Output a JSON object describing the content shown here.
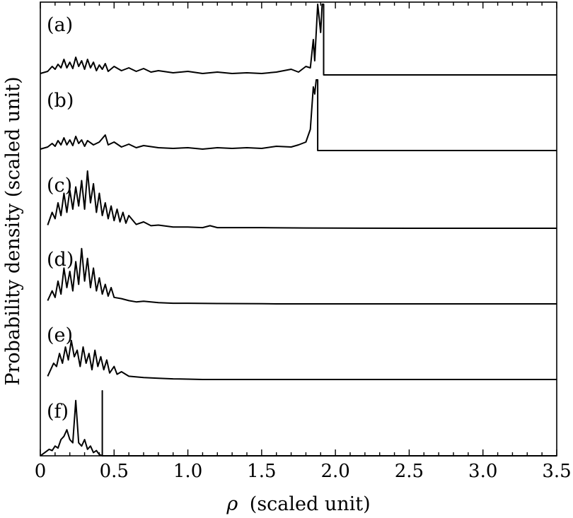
{
  "chart_data": {
    "type": "line",
    "xlabel_symbol": "ρ",
    "xlabel_unit": "(scaled unit)",
    "ylabel": "Probability density (scaled unit)",
    "xlim": [
      0,
      3.5
    ],
    "xticks": [
      "0",
      "0.5",
      "1.0",
      "1.5",
      "2.0",
      "2.5",
      "3.0",
      "3.5"
    ],
    "grid": false,
    "stacked_offset_panels": true,
    "panels": [
      {
        "label": "(a)",
        "cutoff": 1.92,
        "points": [
          [
            0,
            0.02
          ],
          [
            0.05,
            0.05
          ],
          [
            0.08,
            0.12
          ],
          [
            0.1,
            0.08
          ],
          [
            0.12,
            0.15
          ],
          [
            0.14,
            0.1
          ],
          [
            0.16,
            0.22
          ],
          [
            0.18,
            0.1
          ],
          [
            0.2,
            0.18
          ],
          [
            0.22,
            0.09
          ],
          [
            0.24,
            0.25
          ],
          [
            0.26,
            0.12
          ],
          [
            0.28,
            0.2
          ],
          [
            0.3,
            0.08
          ],
          [
            0.32,
            0.22
          ],
          [
            0.34,
            0.1
          ],
          [
            0.36,
            0.18
          ],
          [
            0.38,
            0.06
          ],
          [
            0.4,
            0.14
          ],
          [
            0.42,
            0.08
          ],
          [
            0.44,
            0.16
          ],
          [
            0.46,
            0.05
          ],
          [
            0.5,
            0.12
          ],
          [
            0.55,
            0.06
          ],
          [
            0.6,
            0.1
          ],
          [
            0.65,
            0.05
          ],
          [
            0.7,
            0.09
          ],
          [
            0.75,
            0.04
          ],
          [
            0.8,
            0.06
          ],
          [
            0.9,
            0.03
          ],
          [
            1.0,
            0.05
          ],
          [
            1.1,
            0.02
          ],
          [
            1.2,
            0.04
          ],
          [
            1.3,
            0.02
          ],
          [
            1.4,
            0.03
          ],
          [
            1.5,
            0.02
          ],
          [
            1.6,
            0.04
          ],
          [
            1.7,
            0.08
          ],
          [
            1.75,
            0.04
          ],
          [
            1.8,
            0.12
          ],
          [
            1.83,
            0.1
          ],
          [
            1.85,
            0.5
          ],
          [
            1.86,
            0.2
          ],
          [
            1.88,
            1.0
          ],
          [
            1.9,
            0.6
          ],
          [
            1.91,
            1.0
          ]
        ]
      },
      {
        "label": "(b)",
        "cutoff": 1.88,
        "points": [
          [
            0,
            0.02
          ],
          [
            0.05,
            0.05
          ],
          [
            0.08,
            0.1
          ],
          [
            0.1,
            0.06
          ],
          [
            0.12,
            0.14
          ],
          [
            0.14,
            0.08
          ],
          [
            0.16,
            0.18
          ],
          [
            0.18,
            0.08
          ],
          [
            0.2,
            0.15
          ],
          [
            0.22,
            0.07
          ],
          [
            0.24,
            0.2
          ],
          [
            0.26,
            0.1
          ],
          [
            0.28,
            0.15
          ],
          [
            0.3,
            0.06
          ],
          [
            0.32,
            0.14
          ],
          [
            0.36,
            0.08
          ],
          [
            0.4,
            0.12
          ],
          [
            0.44,
            0.22
          ],
          [
            0.46,
            0.08
          ],
          [
            0.5,
            0.12
          ],
          [
            0.55,
            0.05
          ],
          [
            0.6,
            0.09
          ],
          [
            0.65,
            0.04
          ],
          [
            0.7,
            0.07
          ],
          [
            0.8,
            0.04
          ],
          [
            0.9,
            0.03
          ],
          [
            1.0,
            0.04
          ],
          [
            1.1,
            0.02
          ],
          [
            1.2,
            0.04
          ],
          [
            1.3,
            0.03
          ],
          [
            1.4,
            0.04
          ],
          [
            1.5,
            0.03
          ],
          [
            1.6,
            0.06
          ],
          [
            1.7,
            0.05
          ],
          [
            1.75,
            0.08
          ],
          [
            1.8,
            0.12
          ],
          [
            1.83,
            0.3
          ],
          [
            1.85,
            0.9
          ],
          [
            1.86,
            0.8
          ],
          [
            1.87,
            1.0
          ]
        ]
      },
      {
        "label": "(c)",
        "cutoff": 3.5,
        "points": [
          [
            0.05,
            0.05
          ],
          [
            0.08,
            0.25
          ],
          [
            0.1,
            0.15
          ],
          [
            0.12,
            0.4
          ],
          [
            0.14,
            0.2
          ],
          [
            0.16,
            0.55
          ],
          [
            0.18,
            0.25
          ],
          [
            0.2,
            0.6
          ],
          [
            0.22,
            0.3
          ],
          [
            0.24,
            0.65
          ],
          [
            0.26,
            0.35
          ],
          [
            0.28,
            0.75
          ],
          [
            0.3,
            0.3
          ],
          [
            0.32,
            0.9
          ],
          [
            0.34,
            0.4
          ],
          [
            0.36,
            0.7
          ],
          [
            0.38,
            0.25
          ],
          [
            0.4,
            0.55
          ],
          [
            0.42,
            0.2
          ],
          [
            0.44,
            0.4
          ],
          [
            0.46,
            0.15
          ],
          [
            0.48,
            0.35
          ],
          [
            0.5,
            0.12
          ],
          [
            0.52,
            0.3
          ],
          [
            0.54,
            0.1
          ],
          [
            0.56,
            0.25
          ],
          [
            0.58,
            0.08
          ],
          [
            0.6,
            0.2
          ],
          [
            0.65,
            0.06
          ],
          [
            0.7,
            0.1
          ],
          [
            0.75,
            0.04
          ],
          [
            0.8,
            0.05
          ],
          [
            0.9,
            0.02
          ],
          [
            1.0,
            0.02
          ],
          [
            1.1,
            0.01
          ],
          [
            1.15,
            0.04
          ],
          [
            1.2,
            0.01
          ],
          [
            1.5,
            0.01
          ],
          [
            1.8,
            0.005
          ],
          [
            2.0,
            0.002
          ],
          [
            2.5,
            0
          ],
          [
            3.5,
            0
          ]
        ]
      },
      {
        "label": "(d)",
        "cutoff": 3.5,
        "points": [
          [
            0.05,
            0.05
          ],
          [
            0.08,
            0.2
          ],
          [
            0.1,
            0.1
          ],
          [
            0.12,
            0.35
          ],
          [
            0.14,
            0.15
          ],
          [
            0.16,
            0.55
          ],
          [
            0.18,
            0.25
          ],
          [
            0.2,
            0.5
          ],
          [
            0.22,
            0.2
          ],
          [
            0.24,
            0.65
          ],
          [
            0.26,
            0.3
          ],
          [
            0.28,
            0.85
          ],
          [
            0.3,
            0.35
          ],
          [
            0.32,
            0.7
          ],
          [
            0.34,
            0.25
          ],
          [
            0.36,
            0.55
          ],
          [
            0.38,
            0.2
          ],
          [
            0.4,
            0.4
          ],
          [
            0.42,
            0.15
          ],
          [
            0.44,
            0.3
          ],
          [
            0.46,
            0.12
          ],
          [
            0.48,
            0.25
          ],
          [
            0.5,
            0.1
          ],
          [
            0.55,
            0.08
          ],
          [
            0.6,
            0.05
          ],
          [
            0.65,
            0.03
          ],
          [
            0.7,
            0.04
          ],
          [
            0.8,
            0.02
          ],
          [
            0.9,
            0.01
          ],
          [
            1.0,
            0.01
          ],
          [
            1.2,
            0.005
          ],
          [
            1.5,
            0.002
          ],
          [
            1.6,
            0
          ],
          [
            3.5,
            0
          ]
        ]
      },
      {
        "label": "(e)",
        "cutoff": 3.5,
        "points": [
          [
            0.05,
            0.05
          ],
          [
            0.07,
            0.15
          ],
          [
            0.09,
            0.25
          ],
          [
            0.11,
            0.2
          ],
          [
            0.13,
            0.4
          ],
          [
            0.15,
            0.25
          ],
          [
            0.17,
            0.5
          ],
          [
            0.19,
            0.3
          ],
          [
            0.21,
            0.6
          ],
          [
            0.23,
            0.35
          ],
          [
            0.25,
            0.45
          ],
          [
            0.27,
            0.2
          ],
          [
            0.29,
            0.5
          ],
          [
            0.31,
            0.25
          ],
          [
            0.33,
            0.4
          ],
          [
            0.35,
            0.15
          ],
          [
            0.37,
            0.45
          ],
          [
            0.39,
            0.2
          ],
          [
            0.41,
            0.35
          ],
          [
            0.43,
            0.15
          ],
          [
            0.45,
            0.3
          ],
          [
            0.47,
            0.1
          ],
          [
            0.5,
            0.2
          ],
          [
            0.52,
            0.08
          ],
          [
            0.55,
            0.12
          ],
          [
            0.6,
            0.05
          ],
          [
            0.7,
            0.03
          ],
          [
            0.8,
            0.02
          ],
          [
            0.9,
            0.01
          ],
          [
            1.0,
            0.005
          ],
          [
            1.05,
            0.002
          ],
          [
            1.1,
            0
          ],
          [
            3.5,
            0
          ]
        ]
      },
      {
        "label": "(f)",
        "cutoff": 0.42,
        "points": [
          [
            0,
            0
          ],
          [
            0.03,
            0.05
          ],
          [
            0.06,
            0.1
          ],
          [
            0.08,
            0.08
          ],
          [
            0.1,
            0.15
          ],
          [
            0.12,
            0.12
          ],
          [
            0.14,
            0.25
          ],
          [
            0.16,
            0.3
          ],
          [
            0.18,
            0.4
          ],
          [
            0.2,
            0.25
          ],
          [
            0.22,
            0.2
          ],
          [
            0.24,
            0.85
          ],
          [
            0.26,
            0.2
          ],
          [
            0.28,
            0.15
          ],
          [
            0.3,
            0.25
          ],
          [
            0.32,
            0.1
          ],
          [
            0.34,
            0.15
          ],
          [
            0.36,
            0.05
          ],
          [
            0.38,
            0.08
          ],
          [
            0.4,
            0.02
          ],
          [
            0.42,
            0
          ]
        ]
      }
    ]
  }
}
